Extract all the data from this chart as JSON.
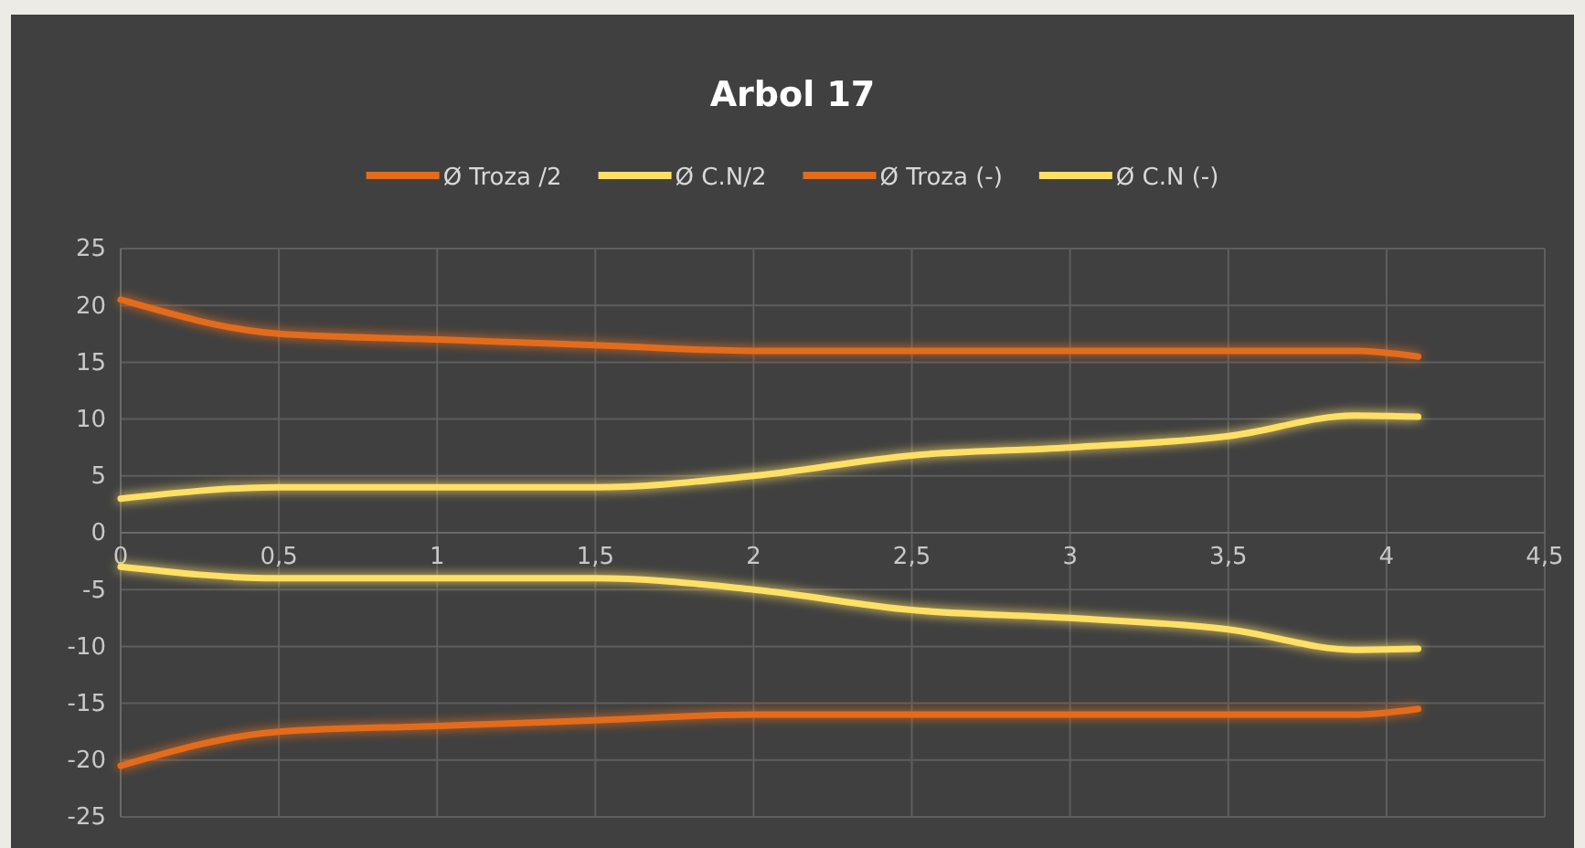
{
  "chart_data": {
    "type": "line",
    "title": "Arbol 17",
    "x": [
      0,
      0.5,
      1,
      1.5,
      2,
      2.5,
      3,
      3.5,
      3.9,
      4.1
    ],
    "series": [
      {
        "name": "Ø Troza /2",
        "color": "#e36c1c",
        "values": [
          20.5,
          17.5,
          17,
          16.5,
          16,
          16,
          16,
          16,
          16,
          15.5
        ]
      },
      {
        "name": "Ø C.N/2",
        "color": "#ffe066",
        "values": [
          3,
          4,
          4,
          4,
          5,
          6.8,
          7.5,
          8.5,
          10.3,
          10.2
        ]
      },
      {
        "name": "Ø Troza (-)",
        "color": "#e36c1c",
        "values": [
          -20.5,
          -17.5,
          -17,
          -16.5,
          -16,
          -16,
          -16,
          -16,
          -16,
          -15.5
        ]
      },
      {
        "name": "Ø C.N (-)",
        "color": "#ffe066",
        "values": [
          -3,
          -4,
          -4,
          -4,
          -5,
          -6.8,
          -7.5,
          -8.5,
          -10.3,
          -10.2
        ]
      }
    ],
    "xlim": [
      0,
      4.5
    ],
    "xticks": [
      0,
      {
        "value": 0.5,
        "label": "0,5"
      },
      1,
      {
        "value": 1.5,
        "label": "1,5"
      },
      2,
      {
        "value": 2.5,
        "label": "2,5"
      },
      3,
      {
        "value": 3.5,
        "label": "3,5"
      },
      4,
      {
        "value": 4.5,
        "label": "4,5"
      }
    ],
    "ylim": [
      -25,
      25
    ],
    "yticks": [
      -25,
      -20,
      -15,
      -10,
      -5,
      0,
      5,
      10,
      15,
      20,
      25
    ],
    "grid": true,
    "legend": "top",
    "marker": "none",
    "line_style": "solid"
  }
}
